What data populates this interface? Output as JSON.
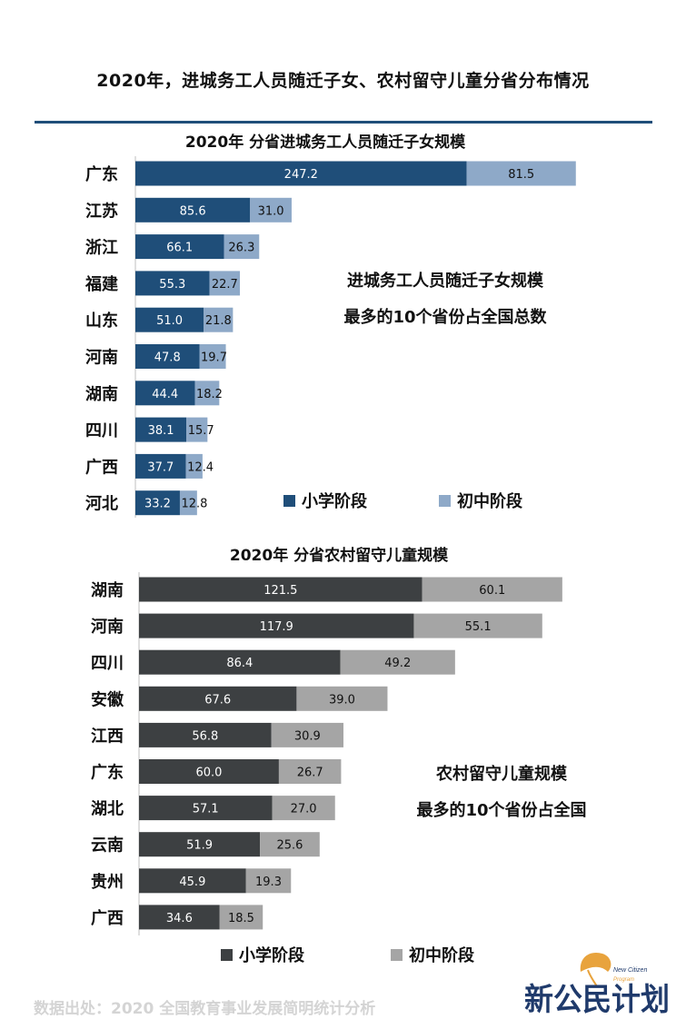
{
  "page": {
    "title": "2020年，进城务工人员随迁子女、农村留守儿童分省分布情况",
    "source": "数据出处：2020 全国教育事业发展简明统计分析",
    "logo_text": "新公民计划",
    "logo_subtext": "New Citizen Program"
  },
  "colors": {
    "divider": "#1f4e79",
    "chart1_primary": "#1f4e79",
    "chart1_junior": "#8ea9c8",
    "chart2_primary": "#3d4042",
    "chart2_junior": "#a5a5a5",
    "logo_orange": "#e8a33d",
    "logo_navy": "#1f3a6b"
  },
  "chart_data": [
    {
      "type": "bar",
      "orientation": "horizontal",
      "stacked": true,
      "title": "2020年 分省进城务工人员随迁子女规模",
      "categories": [
        "广东",
        "江苏",
        "浙江",
        "福建",
        "山东",
        "河南",
        "湖南",
        "四川",
        "广西",
        "河北"
      ],
      "series": [
        {
          "name": "小学阶段",
          "values": [
            247.2,
            85.6,
            66.1,
            55.3,
            51.0,
            47.8,
            44.4,
            38.1,
            37.7,
            33.2
          ]
        },
        {
          "name": "初中阶段",
          "values": [
            81.5,
            31.0,
            26.3,
            22.7,
            21.8,
            19.7,
            18.2,
            15.7,
            12.4,
            12.8
          ]
        }
      ],
      "annotation": [
        "进城务工人员随迁子女规模",
        "最多的10个省份占全国总数"
      ],
      "legend": "bottom",
      "grid": false
    },
    {
      "type": "bar",
      "orientation": "horizontal",
      "stacked": true,
      "title": "2020年 分省农村留守儿童规模",
      "categories": [
        "湖南",
        "河南",
        "四川",
        "安徽",
        "江西",
        "广东",
        "湖北",
        "云南",
        "贵州",
        "广西"
      ],
      "series": [
        {
          "name": "小学阶段",
          "values": [
            121.5,
            117.9,
            86.4,
            67.6,
            56.8,
            60.0,
            57.1,
            51.9,
            45.9,
            34.6
          ]
        },
        {
          "name": "初中阶段",
          "values": [
            60.1,
            55.1,
            49.2,
            39.0,
            30.9,
            26.7,
            27.0,
            25.6,
            19.3,
            18.5
          ]
        }
      ],
      "annotation": [
        "农村留守儿童规模",
        "最多的10个省份占全国"
      ],
      "legend": "bottom",
      "grid": false
    }
  ]
}
